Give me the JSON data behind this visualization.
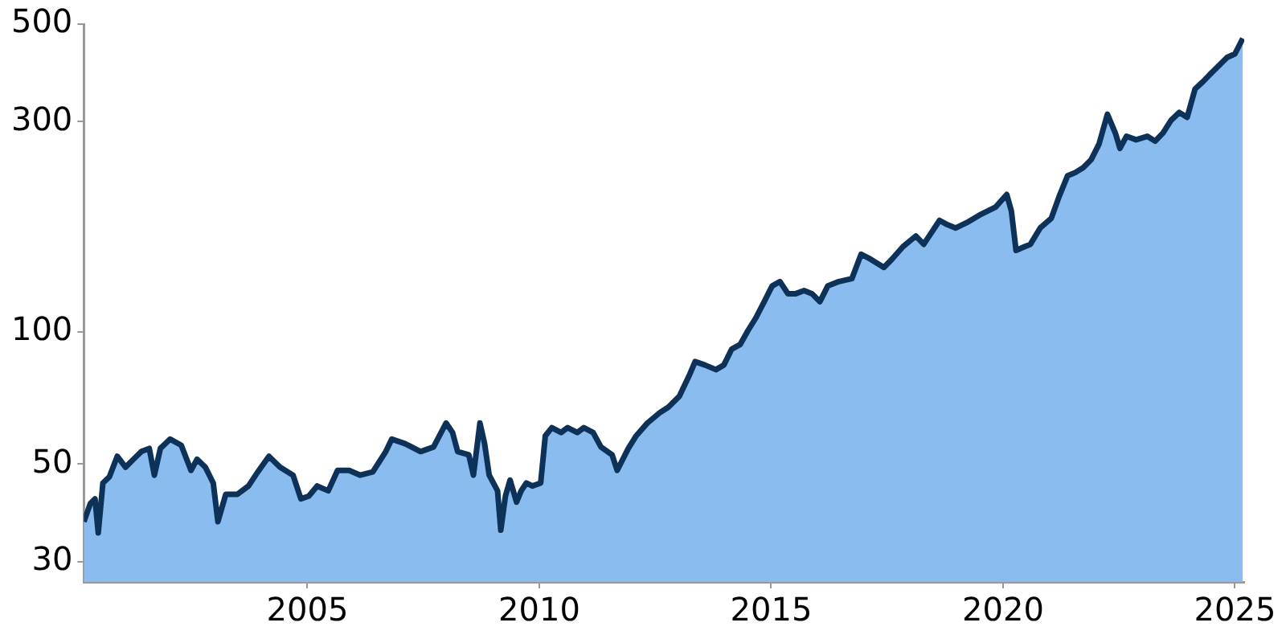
{
  "chart_data": {
    "type": "area",
    "log": true,
    "xlim": [
      2000.18,
      2025.2
    ],
    "xticks": [
      2005,
      2010,
      2015,
      2020,
      2025
    ],
    "ylim": [
      27,
      500
    ],
    "yticks": [
      30,
      50,
      100,
      300,
      500
    ],
    "x": [
      2000.18,
      2000.32,
      2000.42,
      2000.49,
      2000.59,
      2000.73,
      2000.9,
      2001.08,
      2001.25,
      2001.42,
      2001.59,
      2001.7,
      2001.83,
      2002.04,
      2002.28,
      2002.49,
      2002.62,
      2002.8,
      2002.97,
      2003.07,
      2003.24,
      2003.49,
      2003.73,
      2003.93,
      2004.17,
      2004.41,
      2004.69,
      2004.86,
      2005.03,
      2005.21,
      2005.45,
      2005.65,
      2005.9,
      2006.14,
      2006.41,
      2006.69,
      2006.82,
      2007.1,
      2007.44,
      2007.72,
      2007.99,
      2008.13,
      2008.24,
      2008.48,
      2008.58,
      2008.72,
      2008.82,
      2008.92,
      2009.1,
      2009.17,
      2009.27,
      2009.37,
      2009.51,
      2009.61,
      2009.72,
      2009.85,
      2010.03,
      2010.13,
      2010.27,
      2010.47,
      2010.61,
      2010.82,
      2010.96,
      2011.16,
      2011.33,
      2011.57,
      2011.68,
      2011.92,
      2012.09,
      2012.33,
      2012.61,
      2012.78,
      2013.02,
      2013.23,
      2013.36,
      2013.57,
      2013.81,
      2013.98,
      2014.15,
      2014.33,
      2014.5,
      2014.67,
      2014.85,
      2015.02,
      2015.19,
      2015.36,
      2015.53,
      2015.71,
      2015.88,
      2016.05,
      2016.22,
      2016.46,
      2016.74,
      2016.94,
      2017.15,
      2017.43,
      2017.6,
      2017.84,
      2018.12,
      2018.29,
      2018.63,
      2018.8,
      2018.98,
      2019.22,
      2019.49,
      2019.84,
      2020.08,
      2020.18,
      2020.28,
      2020.46,
      2020.59,
      2020.8,
      2021.04,
      2021.21,
      2021.39,
      2021.56,
      2021.73,
      2021.9,
      2022.07,
      2022.25,
      2022.42,
      2022.52,
      2022.66,
      2022.87,
      2023.11,
      2023.28,
      2023.45,
      2023.62,
      2023.8,
      2023.97,
      2024.14,
      2024.31,
      2024.48,
      2024.66,
      2024.83,
      2025.0,
      2025.17
    ],
    "series": [
      {
        "color": "#8bbcf0",
        "values": [
          37,
          40.7,
          41.7,
          34.9,
          45.3,
          46.8,
          52.1,
          49.2,
          51.3,
          53.4,
          54.3,
          47.2,
          54.3,
          57,
          55.2,
          48.4,
          51.3,
          49.2,
          45.3,
          37,
          42.7,
          42.7,
          44.6,
          48,
          52.1,
          49.2,
          47.2,
          41.7,
          42.3,
          44.6,
          43.5,
          48.4,
          48.4,
          47.2,
          48,
          53.4,
          57,
          55.7,
          53.4,
          54.7,
          62,
          59,
          53.4,
          52.5,
          47.2,
          62,
          55.7,
          47.2,
          43.5,
          35.4,
          42.3,
          46,
          41,
          43.5,
          45.3,
          44.6,
          45.3,
          58,
          60.5,
          59,
          60.5,
          59,
          60.5,
          59,
          54.7,
          52.5,
          48.4,
          54.3,
          58,
          62,
          65.6,
          67.3,
          71.3,
          79.4,
          85.5,
          84,
          82,
          84,
          91.3,
          93.5,
          100.6,
          107.5,
          117,
          127,
          130,
          122,
          122,
          124,
          122,
          117,
          127,
          130,
          132,
          150,
          146,
          140,
          146,
          156,
          165,
          158,
          179,
          175,
          172,
          177,
          184,
          192,
          205,
          188,
          153,
          156,
          158,
          172,
          181,
          203,
          226,
          230,
          236,
          246,
          267,
          312,
          283,
          261,
          278,
          273,
          278,
          271,
          283,
          302,
          315,
          307,
          356,
          370,
          386,
          403,
          420,
          428,
          464
        ]
      }
    ]
  }
}
